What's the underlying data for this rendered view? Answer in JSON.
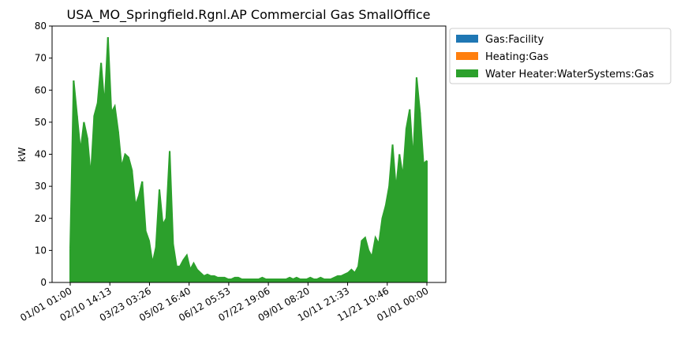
{
  "chart_data": {
    "type": "area",
    "title": "USA_MO_Springfield.Rgnl.AP Commercial Gas SmallOffice",
    "xlabel": "",
    "ylabel": "kW",
    "ylim": [
      0,
      80
    ],
    "yticks": [
      0,
      10,
      20,
      30,
      40,
      50,
      60,
      70,
      80
    ],
    "xticks": [
      "01/01 01:00",
      "02/10 14:13",
      "03/23 03:26",
      "05/02 16:40",
      "06/12 05:53",
      "07/22 19:06",
      "09/01 08:20",
      "10/11 21:33",
      "11/21 10:46",
      "01/01 00:00"
    ],
    "grid": false,
    "legend_position": "outside-top-right",
    "series": [
      {
        "name": "Gas:Facility",
        "color": "#1f77b4",
        "values": []
      },
      {
        "name": "Heating:Gas",
        "color": "#ff7f0e",
        "values": []
      },
      {
        "name": "Water Heater:WaterSystems:Gas",
        "color": "#2ca02c",
        "x": [
          "01/01",
          "01/05",
          "01/08",
          "01/12",
          "01/15",
          "01/19",
          "01/22",
          "01/26",
          "01/29",
          "02/02",
          "02/05",
          "02/09",
          "02/12",
          "02/16",
          "02/19",
          "02/23",
          "02/26",
          "03/02",
          "03/05",
          "03/09",
          "03/12",
          "03/16",
          "03/19",
          "03/23",
          "03/26",
          "03/30",
          "04/02",
          "04/06",
          "04/09",
          "04/13",
          "04/16",
          "04/20",
          "04/23",
          "04/27",
          "04/30",
          "05/04",
          "05/07",
          "05/11",
          "05/14",
          "05/18",
          "05/21",
          "05/25",
          "05/28",
          "06/01",
          "06/04",
          "06/08",
          "06/11",
          "06/15",
          "06/18",
          "06/22",
          "06/25",
          "06/29",
          "07/02",
          "07/06",
          "07/09",
          "07/13",
          "07/16",
          "07/20",
          "07/23",
          "07/27",
          "07/30",
          "08/03",
          "08/06",
          "08/10",
          "08/13",
          "08/17",
          "08/20",
          "08/24",
          "08/27",
          "08/31",
          "09/03",
          "09/07",
          "09/10",
          "09/14",
          "09/17",
          "09/21",
          "09/24",
          "09/28",
          "10/01",
          "10/05",
          "10/08",
          "10/12",
          "10/15",
          "10/19",
          "10/22",
          "10/26",
          "10/29",
          "11/02",
          "11/05",
          "11/09",
          "11/12",
          "11/16",
          "11/19",
          "11/23",
          "11/26",
          "11/30",
          "12/03",
          "12/07",
          "12/10",
          "12/14",
          "12/17",
          "12/21",
          "12/24",
          "12/28",
          "12/31"
        ],
        "values": [
          10.5,
          63,
          52,
          41,
          50,
          45,
          33,
          52,
          56,
          68.5,
          55,
          76.5,
          53,
          55,
          47,
          36,
          40,
          39,
          35,
          24,
          27,
          31.5,
          16,
          13,
          6,
          11,
          29,
          18,
          20,
          41,
          12,
          5,
          5,
          7,
          8.5,
          4,
          6,
          4,
          3,
          2,
          2.5,
          2,
          2,
          1.5,
          1.5,
          1.5,
          1,
          1,
          1.5,
          1.5,
          1,
          1,
          1,
          1,
          1,
          1,
          1.5,
          1,
          1,
          1,
          1,
          1,
          1,
          1,
          1.5,
          1,
          1.5,
          1,
          1,
          1,
          1.5,
          1,
          1,
          1.5,
          1,
          1,
          1,
          1.5,
          2,
          2,
          2.5,
          3,
          4,
          3,
          5,
          13,
          14,
          10,
          8,
          14,
          12,
          20,
          24,
          30,
          43,
          29,
          40,
          33,
          48,
          54,
          38,
          64,
          53,
          37,
          38
        ]
      }
    ]
  }
}
